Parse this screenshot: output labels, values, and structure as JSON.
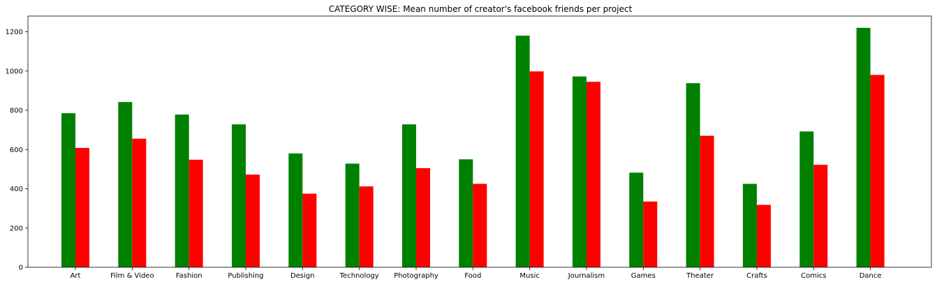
{
  "chart_data": {
    "type": "bar",
    "title": "CATEGORY WISE: Mean number of creator's facebook friends per project",
    "xlabel": "",
    "ylabel": "",
    "categories": [
      "Art",
      "Film & Video",
      "Fashion",
      "Publishing",
      "Design",
      "Technology",
      "Photography",
      "Food",
      "Music",
      "Journalism",
      "Games",
      "Theater",
      "Crafts",
      "Comics",
      "Dance"
    ],
    "series": [
      {
        "color": "#008000",
        "values": [
          785,
          842,
          778,
          728,
          580,
          528,
          728,
          550,
          1180,
          972,
          482,
          938,
          425,
          692,
          1220
        ]
      },
      {
        "color": "#ff0000",
        "values": [
          608,
          655,
          548,
          472,
          375,
          412,
          505,
          425,
          998,
          945,
          335,
          670,
          318,
          522,
          980
        ]
      }
    ],
    "ylim": [
      0,
      1280
    ],
    "yticks": [
      0,
      200,
      400,
      600,
      800,
      1000,
      1200
    ],
    "grid": false,
    "legend": "none"
  }
}
